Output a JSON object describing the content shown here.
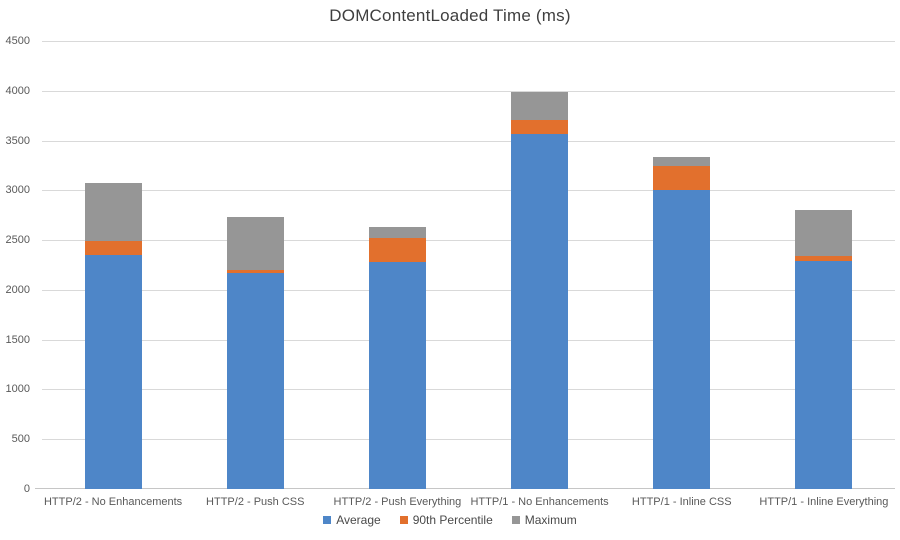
{
  "chart_data": {
    "type": "bar",
    "stacked": true,
    "title": "DOMContentLoaded Time (ms)",
    "xlabel": "",
    "ylabel": "",
    "categories": [
      "HTTP/2 - No Enhancements",
      "HTTP/2 - Push CSS",
      "HTTP/2 - Push Everything",
      "HTTP/1 - No Enhancements",
      "HTTP/1 - Inline CSS",
      "HTTP/1 - Inline Everything"
    ],
    "series": [
      {
        "name": "Average",
        "color": "#4E86C8",
        "values": [
          2350,
          2170,
          2280,
          3570,
          3000,
          2290
        ]
      },
      {
        "name": "90th Percentile",
        "color": "#E2702D",
        "values": [
          2490,
          2200,
          2520,
          3710,
          3240,
          2340
        ]
      },
      {
        "name": "Maximum",
        "color": "#969696",
        "values": [
          3070,
          2730,
          2630,
          3990,
          3340,
          2800
        ]
      }
    ],
    "values_note": "Each series value is the cumulative stack-top reading in ms (Average <= 90th Percentile <= Maximum); segment heights are the differences between consecutive series.",
    "ylim": [
      0,
      4500
    ],
    "ytick_step": 500,
    "yticks": [
      0,
      500,
      1000,
      1500,
      2000,
      2500,
      3000,
      3500,
      4000,
      4500
    ],
    "grid": "horizontal",
    "legend_position": "bottom",
    "colors": {
      "gridline": "#D9D9D9",
      "axis_line": "#C6C6C6",
      "axis_text": "#595959",
      "title_text": "#3F3F3F",
      "background": "#FFFFFF"
    }
  }
}
